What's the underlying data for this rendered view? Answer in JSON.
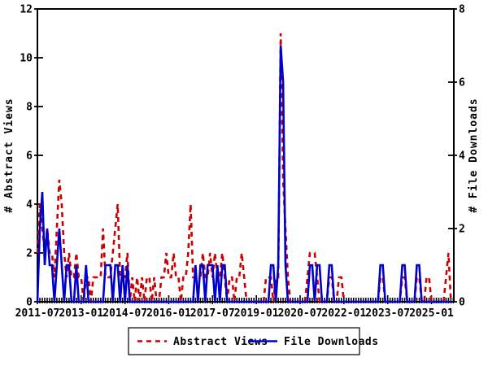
{
  "chart_data": {
    "type": "line",
    "title": "",
    "xlabel": "",
    "ylabel_left": "# Abstract Views",
    "ylabel_right": "# File Downloads",
    "x_start": "2011-07",
    "x_cadence": "monthly",
    "n_months": 171,
    "x_tick_labels": [
      "2011-07",
      "2013-01",
      "2014-07",
      "2016-01",
      "2017-07",
      "2019-01",
      "2020-07",
      "2022-01",
      "2023-07",
      "2025-01"
    ],
    "x_tick_interval_months": 18,
    "ylim_left": [
      0,
      12
    ],
    "ytick_step_left": 2,
    "ylim_right": [
      0,
      8
    ],
    "ytick_step_right": 2,
    "grid": false,
    "legend_position": "bottom-center",
    "series": [
      {
        "name": "Abstract Views",
        "axis": "left",
        "color": "#cc0000",
        "style": "dashed",
        "values": [
          2,
          4,
          3,
          2,
          3,
          2,
          2,
          1,
          3,
          5,
          4,
          2,
          1,
          2,
          1,
          1,
          2,
          1,
          1,
          0,
          1,
          1,
          0,
          1,
          1,
          1,
          1,
          3,
          1,
          1,
          1,
          2,
          3,
          4,
          1,
          1,
          1,
          2,
          0,
          1,
          0,
          1,
          0,
          1,
          0,
          1,
          1,
          0,
          1,
          0,
          0,
          1,
          1,
          2,
          1,
          1,
          2,
          1,
          1,
          0,
          1,
          1,
          2,
          4,
          1,
          1,
          1,
          1,
          2,
          1,
          1,
          2,
          1,
          2,
          1,
          1,
          2,
          1,
          0,
          1,
          1,
          0,
          1,
          1,
          2,
          1,
          0,
          0,
          0,
          0,
          0,
          0,
          0,
          0,
          1,
          1,
          1,
          0,
          1,
          1,
          11,
          5,
          3,
          1,
          0,
          0,
          0,
          0,
          0,
          0,
          0,
          1,
          2,
          2,
          2,
          1,
          0,
          0,
          0,
          0,
          1,
          1,
          0,
          0,
          1,
          1,
          0,
          0,
          0,
          0,
          0,
          0,
          0,
          0,
          0,
          0,
          0,
          0,
          0,
          0,
          0,
          1,
          1,
          0,
          0,
          0,
          0,
          0,
          0,
          0,
          1,
          1,
          0,
          0,
          0,
          0,
          1,
          1,
          0,
          0,
          1,
          1,
          0,
          0,
          0,
          0,
          0,
          0,
          1,
          2,
          0
        ]
      },
      {
        "name": "File Downloads",
        "axis": "right",
        "color": "#0000cc",
        "style": "solid",
        "values": [
          0,
          2,
          3,
          1,
          2,
          1,
          1,
          0,
          1,
          2,
          1,
          0,
          1,
          1,
          0,
          0,
          1,
          0,
          0,
          0,
          1,
          0,
          0,
          0,
          0,
          0,
          0,
          0,
          1,
          1,
          1,
          0,
          1,
          1,
          0,
          1,
          0,
          1,
          0,
          0,
          0,
          0,
          0,
          0,
          0,
          0,
          0,
          0,
          0,
          0,
          0,
          0,
          0,
          0,
          0,
          0,
          0,
          0,
          0,
          0,
          0,
          0,
          0,
          0,
          0,
          1,
          0,
          1,
          1,
          0,
          1,
          1,
          1,
          0,
          1,
          0,
          1,
          1,
          0,
          0,
          0,
          0,
          0,
          0,
          0,
          0,
          0,
          0,
          0,
          0,
          0,
          0,
          0,
          0,
          0,
          0,
          1,
          1,
          0,
          1,
          7,
          6,
          1,
          0,
          0,
          0,
          0,
          0,
          0,
          0,
          0,
          0,
          1,
          1,
          0,
          1,
          1,
          0,
          0,
          0,
          1,
          1,
          0,
          0,
          0,
          0,
          0,
          0,
          0,
          0,
          0,
          0,
          0,
          0,
          0,
          0,
          0,
          0,
          0,
          0,
          0,
          1,
          1,
          0,
          0,
          0,
          0,
          0,
          0,
          0,
          1,
          1,
          0,
          0,
          0,
          0,
          1,
          1,
          0,
          0,
          0,
          0,
          0,
          0,
          0,
          0,
          0,
          0,
          0,
          0,
          0
        ]
      }
    ],
    "left_axis_tick_values": [
      0,
      2,
      4,
      6,
      8,
      10,
      12
    ],
    "right_axis_tick_values": [
      0,
      2,
      4,
      6,
      8
    ]
  },
  "legend": {
    "items": [
      {
        "label": "Abstract Views"
      },
      {
        "label": "File Downloads"
      }
    ]
  },
  "colors": {
    "abstract_views": "#cc0000",
    "file_downloads": "#0000cc",
    "axis": "#000000",
    "background": "#ffffff"
  }
}
